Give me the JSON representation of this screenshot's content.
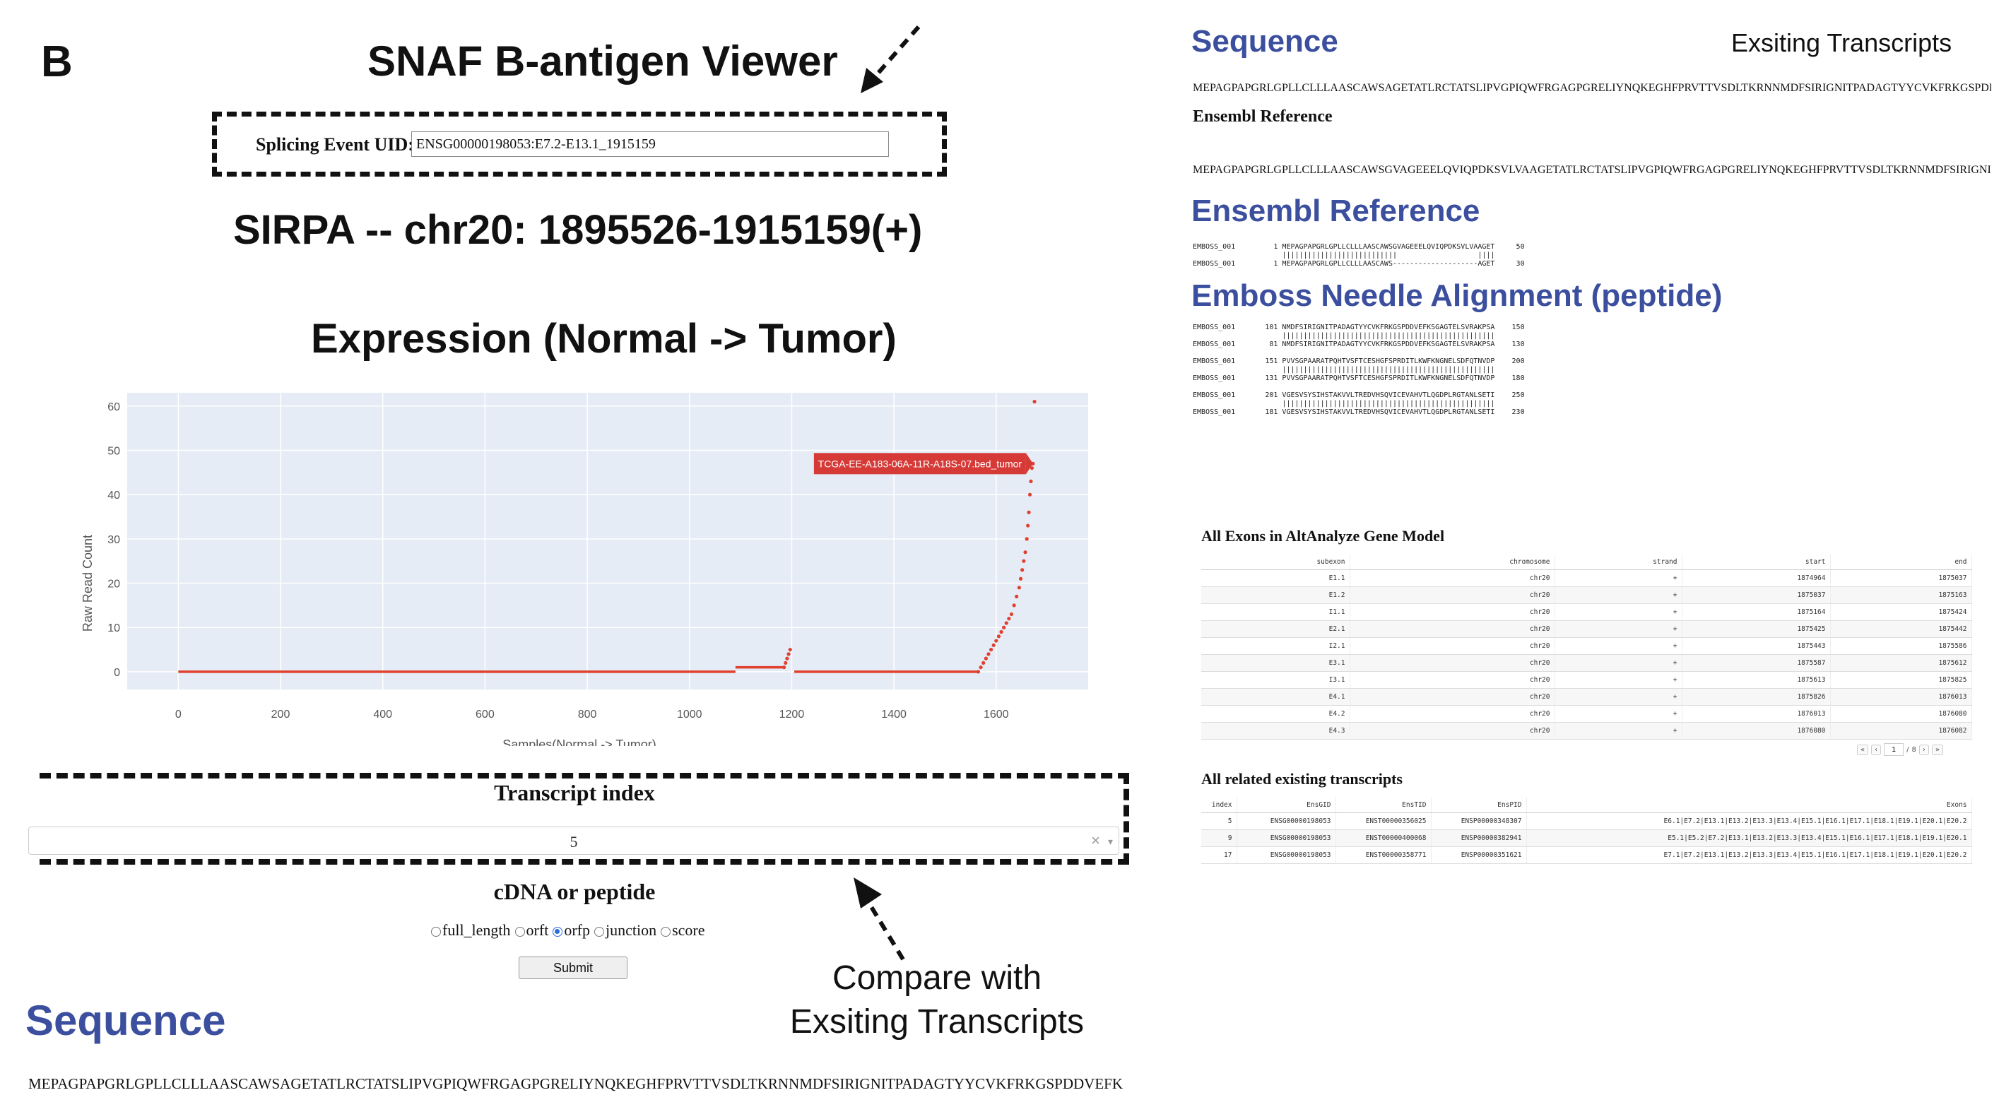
{
  "panel_letter": "B",
  "viewer_title": "SNAF B-antigen Viewer",
  "uid": {
    "label": "Splicing Event UID:",
    "value": "ENSG00000198053:E7.2-E13.1_1915159"
  },
  "gene_title": "SIRPA -- chr20: 1895526-1915159(+)",
  "expression_title": "Expression (Normal -> Tumor)",
  "chart_data": {
    "type": "scatter",
    "xlabel": "Samples(Normal -> Tumor)",
    "ylabel": "Raw Read Count",
    "xlim": [
      -100,
      1780
    ],
    "ylim": [
      -4,
      63
    ],
    "xticks": [
      0,
      200,
      400,
      600,
      800,
      1000,
      1200,
      1400,
      1600
    ],
    "yticks": [
      0,
      10,
      20,
      30,
      40,
      50,
      60
    ],
    "grid": true,
    "color": "#e0402e",
    "annotation": {
      "text": "TCGA-EE-A183-06A-11R-A18S-07.bed_tumor",
      "x": 1672,
      "y": 47
    },
    "segments": [
      {
        "x": [
          0,
          1090
        ],
        "y": 0
      },
      {
        "x": [
          1090,
          1185
        ],
        "y": 1
      },
      {
        "x": [
          1205,
          1565
        ],
        "y": 0
      }
    ],
    "points": [
      [
        1185,
        1
      ],
      [
        1188,
        2
      ],
      [
        1191,
        3
      ],
      [
        1194,
        4
      ],
      [
        1197,
        5
      ],
      [
        1565,
        0
      ],
      [
        1570,
        1
      ],
      [
        1575,
        2
      ],
      [
        1580,
        3
      ],
      [
        1585,
        4
      ],
      [
        1590,
        5
      ],
      [
        1595,
        6
      ],
      [
        1600,
        7
      ],
      [
        1605,
        8
      ],
      [
        1610,
        9
      ],
      [
        1615,
        10
      ],
      [
        1620,
        11
      ],
      [
        1625,
        12
      ],
      [
        1630,
        13
      ],
      [
        1635,
        15
      ],
      [
        1640,
        17
      ],
      [
        1645,
        19
      ],
      [
        1648,
        21
      ],
      [
        1651,
        23
      ],
      [
        1654,
        25
      ],
      [
        1657,
        27
      ],
      [
        1660,
        30
      ],
      [
        1662,
        33
      ],
      [
        1664,
        36
      ],
      [
        1666,
        40
      ],
      [
        1668,
        43
      ],
      [
        1670,
        46
      ],
      [
        1672,
        47
      ],
      [
        1675,
        61
      ]
    ]
  },
  "transcript": {
    "label": "Transcript index",
    "value": "5",
    "clear": "×",
    "caret": "▾"
  },
  "mode": {
    "label": "cDNA or peptide",
    "options": [
      {
        "label": "full_length",
        "checked": false
      },
      {
        "label": "orft",
        "checked": false
      },
      {
        "label": "orfp",
        "checked": true
      },
      {
        "label": "junction",
        "checked": false
      },
      {
        "label": "score",
        "checked": false
      }
    ]
  },
  "submit_label": "Submit",
  "compare_text": {
    "line1": "Compare with",
    "line2": "Exsiting Transcripts"
  },
  "sequence_heading": "Sequence",
  "sequence_left": "MEPAGPAPGRLGPLLCLLLAASCAWSAGETATLRCTATSLIPVGPIQWFRGAGPGRELIYNQKEGHFPRVTTVSDLTKRNNMDFSIRIGNITPADAGTYYCVKFRKGSPDDVEFKSGAGTE",
  "right": {
    "sequence_heading": "Sequence",
    "existing_label": "Exsiting Transcripts",
    "sequence": "MEPAGPAPGRLGPLLCLLLAASCAWSAGETATLRCTATSLIPVGPIQWFRGAGPGRELIYNQKEGHFPRVTTVSDLTKRNNMDFSIRIGNITPADAGTYYCVKFRKGSPDDVEFKSGAGTE",
    "ensembl_label": "Ensembl Reference",
    "ensembl_sequence": "MEPAGPAPGRLGPLLCLLLAASCAWSGVAGEEELQVIQPDKSVLVAAGETATLRCTATSLIPVGPIQWFRGAGPGRELIYNQKEGHFPRVTTVSDLTKRNNMDFSIRIGNITPADAGTYYCV",
    "ensembl_heading": "Ensembl Reference",
    "emboss_heading": "Emboss Needle Alignment (peptide)",
    "alignment_top": "EMBOSS_001         1 MEPAGPAPGRLGPLLCLLLAASCAWSGVAGEEELQVIQPDKSVLVAAGET     50\n                     |||||||||||||||||||||||||||                   ||||\nEMBOSS_001         1 MEPAGPAPGRLGPLLCLLLAASCAWS--------------------AGET     30",
    "alignment_rest": "EMBOSS_001       101 NMDFSIRIGNITPADAGTYYCVKFRKGSPDDVEFKSGAGTELSVRAKPSA    150\n                     ||||||||||||||||||||||||||||||||||||||||||||||||||\nEMBOSS_001        81 NMDFSIRIGNITPADAGTYYCVKFRKGSPDDVEFKSGAGTELSVRAKPSA    130\n\nEMBOSS_001       151 PVVSGPAARATPQHTVSFTCESHGFSPRDITLKWFKNGNELSDFQTNVDP    200\n                     ||||||||||||||||||||||||||||||||||||||||||||||||||\nEMBOSS_001       131 PVVSGPAARATPQHTVSFTCESHGFSPRDITLKWFKNGNELSDFQTNVDP    180\n\nEMBOSS_001       201 VGESVSYSIHSTAKVVLTREDVHSQVICEVAHVTLQGDPLRGTANLSETI    250\n                     ||||||||||||||||||||||||||||||||||||||||||||||||||\nEMBOSS_001       181 VGESVSYSIHSTAKVVLTREDVHSQVICEVAHVTLQGDPLRGTANLSETI    230",
    "exons_title": "All Exons in AltAnalyze Gene Model",
    "exons_columns": [
      "subexon",
      "chromosome",
      "strand",
      "start",
      "end"
    ],
    "exons_rows": [
      [
        "E1.1",
        "chr20",
        "+",
        "1874964",
        "1875037"
      ],
      [
        "E1.2",
        "chr20",
        "+",
        "1875037",
        "1875163"
      ],
      [
        "I1.1",
        "chr20",
        "+",
        "1875164",
        "1875424"
      ],
      [
        "E2.1",
        "chr20",
        "+",
        "1875425",
        "1875442"
      ],
      [
        "I2.1",
        "chr20",
        "+",
        "1875443",
        "1875586"
      ],
      [
        "E3.1",
        "chr20",
        "+",
        "1875587",
        "1875612"
      ],
      [
        "I3.1",
        "chr20",
        "+",
        "1875613",
        "1875825"
      ],
      [
        "E4.1",
        "chr20",
        "+",
        "1875826",
        "1876013"
      ],
      [
        "E4.2",
        "chr20",
        "+",
        "1876013",
        "1876080"
      ],
      [
        "E4.3",
        "chr20",
        "+",
        "1876080",
        "1876082"
      ]
    ],
    "pager": {
      "first": "«",
      "prev": "‹",
      "page": "1",
      "sep": "/",
      "total": "8",
      "next": "›",
      "last": "»"
    },
    "transcripts_title": "All related existing transcripts",
    "transcripts_columns": [
      "index",
      "EnsGID",
      "EnsTID",
      "EnsPID",
      "Exons"
    ],
    "transcripts_rows": [
      [
        "5",
        "ENSG00000198053",
        "ENST00000356025",
        "ENSP00000348307",
        "E6.1|E7.2|E13.1|E13.2|E13.3|E13.4|E15.1|E16.1|E17.1|E18.1|E19.1|E20.1|E20.2"
      ],
      [
        "9",
        "ENSG00000198053",
        "ENST00000400068",
        "ENSP00000382941",
        "E5.1|E5.2|E7.2|E13.1|E13.2|E13.3|E13.4|E15.1|E16.1|E17.1|E18.1|E19.1|E20.1"
      ],
      [
        "17",
        "ENSG00000198053",
        "ENST00000358771",
        "ENSP00000351621",
        "E7.1|E7.2|E13.1|E13.2|E13.3|E13.4|E15.1|E16.1|E17.1|E18.1|E19.1|E20.1|E20.2"
      ]
    ]
  }
}
